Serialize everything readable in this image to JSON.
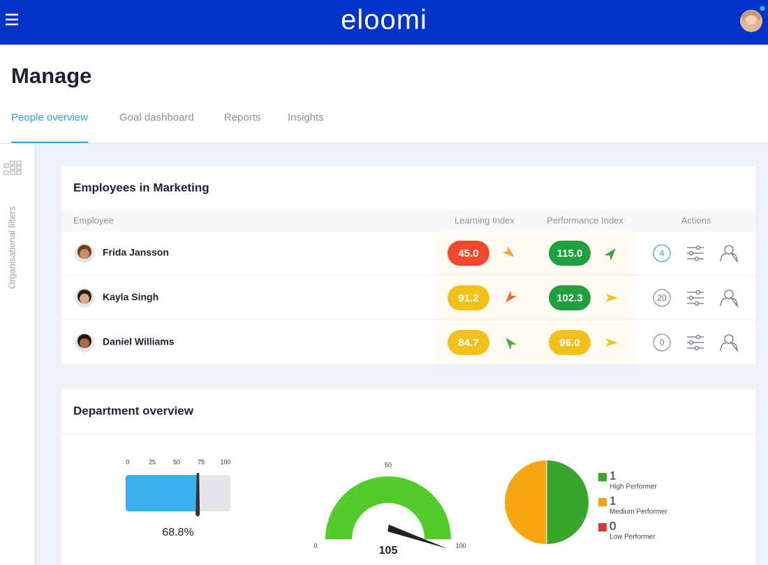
{
  "header": {
    "logo": "eloomi"
  },
  "page": {
    "title": "Manage",
    "tabs": [
      "People overview",
      "Goal dashboard",
      "Reports",
      "Insights"
    ],
    "active_tab": 0
  },
  "sidebar": {
    "label": "Organisational filters"
  },
  "employees": {
    "title": "Employees in Marketing",
    "columns": [
      "Employee",
      "Learning Index",
      "Performance Index",
      "Actions"
    ],
    "rows": [
      {
        "name": "Frida Jansson",
        "learning": "45.0",
        "learning_color": "#f4472f",
        "performance": "115.0",
        "performance_color": "#1f9f3d",
        "count": "4"
      },
      {
        "name": "Kayla Singh",
        "learning": "91.2",
        "learning_color": "#f3c11c",
        "performance": "102.3",
        "performance_color": "#1f9f3d",
        "count": "20"
      },
      {
        "name": "Daniel Williams",
        "learning": "84.7",
        "learning_color": "#f3c11c",
        "performance": "96.0",
        "performance_color": "#f3c11c",
        "count": "0"
      }
    ]
  },
  "department": {
    "title": "Department overview",
    "bar": {
      "type": "bar",
      "xlim": [
        0,
        100
      ],
      "xticks": [
        0,
        25,
        50,
        75,
        100
      ],
      "value": 68.8,
      "value_label": "68.8%",
      "color": "#3ab0ee"
    },
    "gauge": {
      "type": "gauge",
      "xlim": [
        0,
        100
      ],
      "xticks": [
        0,
        50,
        100
      ],
      "value": 105,
      "color": "#52cc2a"
    },
    "pie": {
      "type": "pie",
      "series": [
        {
          "name": "High Performer",
          "value": 1,
          "color": "#3aa52d"
        },
        {
          "name": "Medium Performer",
          "value": 1,
          "color": "#f7a612"
        },
        {
          "name": "Low Performer",
          "value": 0,
          "color": "#d83a3a"
        }
      ]
    }
  }
}
